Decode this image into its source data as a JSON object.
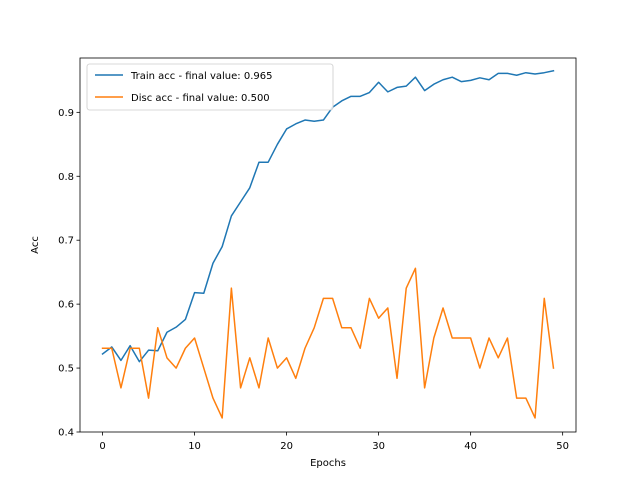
{
  "chart_data": {
    "type": "line",
    "title": "",
    "xlabel": "Epochs",
    "ylabel": "Acc",
    "xlim": [
      -2.45,
      51.45
    ],
    "ylim": [
      0.4,
      0.985
    ],
    "xticks": [
      0,
      10,
      20,
      30,
      40,
      50
    ],
    "yticks": [
      0.4,
      0.5,
      0.6,
      0.7,
      0.8,
      0.9
    ],
    "grid": false,
    "legend_position": "upper-left",
    "x": [
      0,
      1,
      2,
      3,
      4,
      5,
      6,
      7,
      8,
      9,
      10,
      11,
      12,
      13,
      14,
      15,
      16,
      17,
      18,
      19,
      20,
      21,
      22,
      23,
      24,
      25,
      26,
      27,
      28,
      29,
      30,
      31,
      32,
      33,
      34,
      35,
      36,
      37,
      38,
      39,
      40,
      41,
      42,
      43,
      44,
      45,
      46,
      47,
      48,
      49
    ],
    "series": [
      {
        "name": "Train acc - final value: 0.965",
        "color": "#1f77b4",
        "values": [
          0.522,
          0.533,
          0.512,
          0.535,
          0.51,
          0.528,
          0.527,
          0.556,
          0.564,
          0.576,
          0.618,
          0.617,
          0.664,
          0.69,
          0.738,
          0.76,
          0.782,
          0.822,
          0.822,
          0.85,
          0.874,
          0.882,
          0.888,
          0.886,
          0.888,
          0.908,
          0.918,
          0.925,
          0.925,
          0.931,
          0.947,
          0.932,
          0.939,
          0.941,
          0.955,
          0.934,
          0.944,
          0.951,
          0.955,
          0.948,
          0.95,
          0.954,
          0.951,
          0.961,
          0.961,
          0.958,
          0.962,
          0.96,
          0.962,
          0.965
        ]
      },
      {
        "name": "Disc acc - final value: 0.500",
        "color": "#ff7f0e",
        "values": [
          0.531,
          0.531,
          0.469,
          0.531,
          0.531,
          0.453,
          0.563,
          0.516,
          0.5,
          0.531,
          0.547,
          0.5,
          0.453,
          0.422,
          0.625,
          0.469,
          0.516,
          0.469,
          0.547,
          0.5,
          0.516,
          0.484,
          0.531,
          0.563,
          0.609,
          0.609,
          0.563,
          0.563,
          0.531,
          0.609,
          0.578,
          0.594,
          0.484,
          0.625,
          0.656,
          0.469,
          0.547,
          0.594,
          0.547,
          0.547,
          0.547,
          0.5,
          0.547,
          0.516,
          0.547,
          0.453,
          0.453,
          0.422,
          0.609,
          0.5
        ]
      }
    ]
  }
}
